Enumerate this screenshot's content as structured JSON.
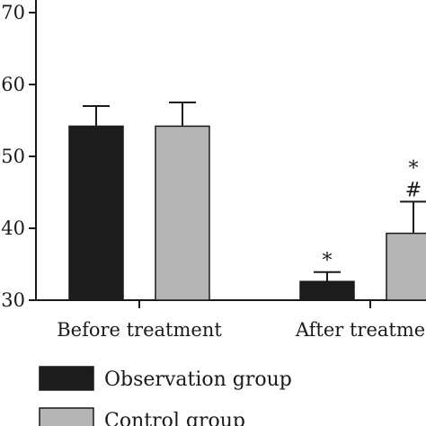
{
  "chart_data": {
    "type": "bar",
    "title": "",
    "xlabel": "",
    "ylabel": "",
    "ylim": [
      30,
      70
    ],
    "yticks": [
      30,
      40,
      50,
      60,
      70
    ],
    "ytick_labels": [
      "30",
      "40",
      "50",
      "60",
      "70"
    ],
    "categories": [
      "Before treatment",
      "After treatment"
    ],
    "series": [
      {
        "name": "Observation group",
        "color": "#1c1c1c",
        "values": [
          54.2,
          32.6
        ],
        "errors": [
          2.8,
          1.3
        ],
        "annotations": [
          "",
          "*"
        ]
      },
      {
        "name": "Control group",
        "color": "#b4b4b4",
        "values": [
          54.2,
          39.3
        ],
        "errors": [
          3.3,
          4.4
        ],
        "annotations": [
          "",
          "*\n#"
        ]
      }
    ],
    "grid": false,
    "legend_placement": "bottom-left"
  }
}
